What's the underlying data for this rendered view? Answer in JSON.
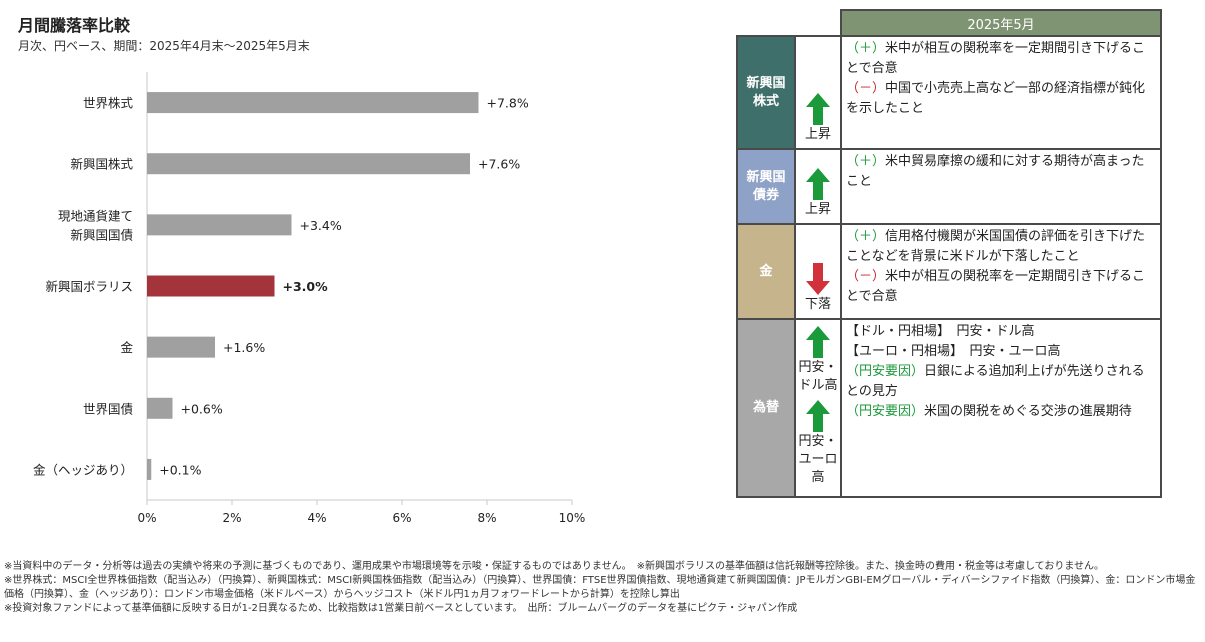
{
  "title": "月間騰落率比較",
  "subtitle": "月次、円ベース、期間：2025年4月末～2025年5月末",
  "chart_data": {
    "type": "bar",
    "orientation": "horizontal",
    "categories": [
      [
        "世界株式"
      ],
      [
        "新興国株式"
      ],
      [
        "現地通貨建て",
        "新興国国債"
      ],
      [
        "新興国ボラリス"
      ],
      [
        "金"
      ],
      [
        "世界国債"
      ],
      [
        "金（ヘッジあり）"
      ]
    ],
    "values": [
      7.8,
      7.6,
      3.4,
      3.0,
      1.6,
      0.6,
      0.1
    ],
    "value_labels": [
      "+7.8%",
      "+7.6%",
      "+3.4%",
      "+3.0%",
      "+1.6%",
      "+0.6%",
      "+0.1%"
    ],
    "highlight_index": 3,
    "xlim": [
      0,
      10
    ],
    "xticks": [
      0,
      2,
      4,
      6,
      8,
      10
    ],
    "xtick_labels": [
      "0%",
      "2%",
      "4%",
      "6%",
      "8%",
      "10%"
    ],
    "colors": {
      "bar": "#a0a0a0",
      "highlight": "#a3343c",
      "highlight_text": "#c0282e",
      "axis": "#c8c8c8"
    }
  },
  "table": {
    "header": "2025年5月",
    "rows": [
      {
        "asset": [
          "新興国",
          "株式"
        ],
        "asset_color": "#3f6f6b",
        "arrows": [
          {
            "dir": "up",
            "label": "上昇"
          }
        ],
        "lines": [
          {
            "type": "plus",
            "tag": "（＋）",
            "text": "米中が相互の関税率を一定期間引き下げることで合意"
          },
          {
            "type": "minus",
            "tag": "（－）",
            "text": "中国で小売売上高など一部の経済指標が鈍化を示したこと"
          }
        ]
      },
      {
        "asset": [
          "新興国",
          "債券"
        ],
        "asset_color": "#8ea1c7",
        "arrows": [
          {
            "dir": "up",
            "label": "上昇"
          }
        ],
        "lines": [
          {
            "type": "plus",
            "tag": "（＋）",
            "text": "米中貿易摩擦の緩和に対する期待が高まったこと"
          }
        ]
      },
      {
        "asset": [
          "金"
        ],
        "asset_color": "#c6b48d",
        "arrows": [
          {
            "dir": "down",
            "label": "下落"
          }
        ],
        "lines": [
          {
            "type": "plus",
            "tag": "（＋）",
            "text": "信用格付機関が米国国債の評価を引き下げたことなどを背景に米ドルが下落したこと"
          },
          {
            "type": "minus",
            "tag": "（－）",
            "text": "米中が相互の関税率を一定期間引き下げることで合意"
          }
        ]
      },
      {
        "asset": [
          "為替"
        ],
        "asset_color": "#a8a8a8",
        "arrows": [
          {
            "dir": "up",
            "label": "円安・ドル高"
          },
          {
            "dir": "up",
            "label": "円安・ユーロ高"
          }
        ],
        "lines": [
          {
            "type": "plain",
            "tag": "",
            "text": "【ドル・円相場】　円安・ドル高"
          },
          {
            "type": "plain",
            "tag": "",
            "text": "【ユーロ・円相場】　円安・ユーロ高"
          },
          {
            "type": "plus",
            "tag": "（円安要因）",
            "text": "日銀による追加利上げが先送りされるとの見方"
          },
          {
            "type": "plus",
            "tag": "（円安要因）",
            "text": "米国の関税をめぐる交渉の進展期待"
          }
        ]
      }
    ]
  },
  "notes": [
    "※当資料中のデータ・分析等は過去の実績や将来の予測に基づくものであり、運用成果や市場環境等を示唆・保証するものではありません。　※新興国ボラリスの基準価額は信託報酬等控除後。また、換金時の費用・税金等は考慮しておりません。",
    "※世界株式：MSCI全世界株価指数（配当込み）（円換算）、新興国株式：MSCI新興国株価指数（配当込み）（円換算）、世界国債：FTSE世界国債指数、現地通貨建て新興国国債：JPモルガンGBI-EMグローバル・ディバーシファイド指数（円換算）、金：ロンドン市場金価格（円換算）、金（ヘッジあり）：ロンドン市場金価格（米ドルベース）からヘッジコスト（米ドル円1ヵ月フォワードレートから計算）を控除し算出",
    "※投資対象ファンドによって基準価額に反映する日が1-2日異なるため、比較指数は1営業日前ベースとしています。　出所：ブルームバーグのデータを基にピクテ・ジャパン作成"
  ]
}
